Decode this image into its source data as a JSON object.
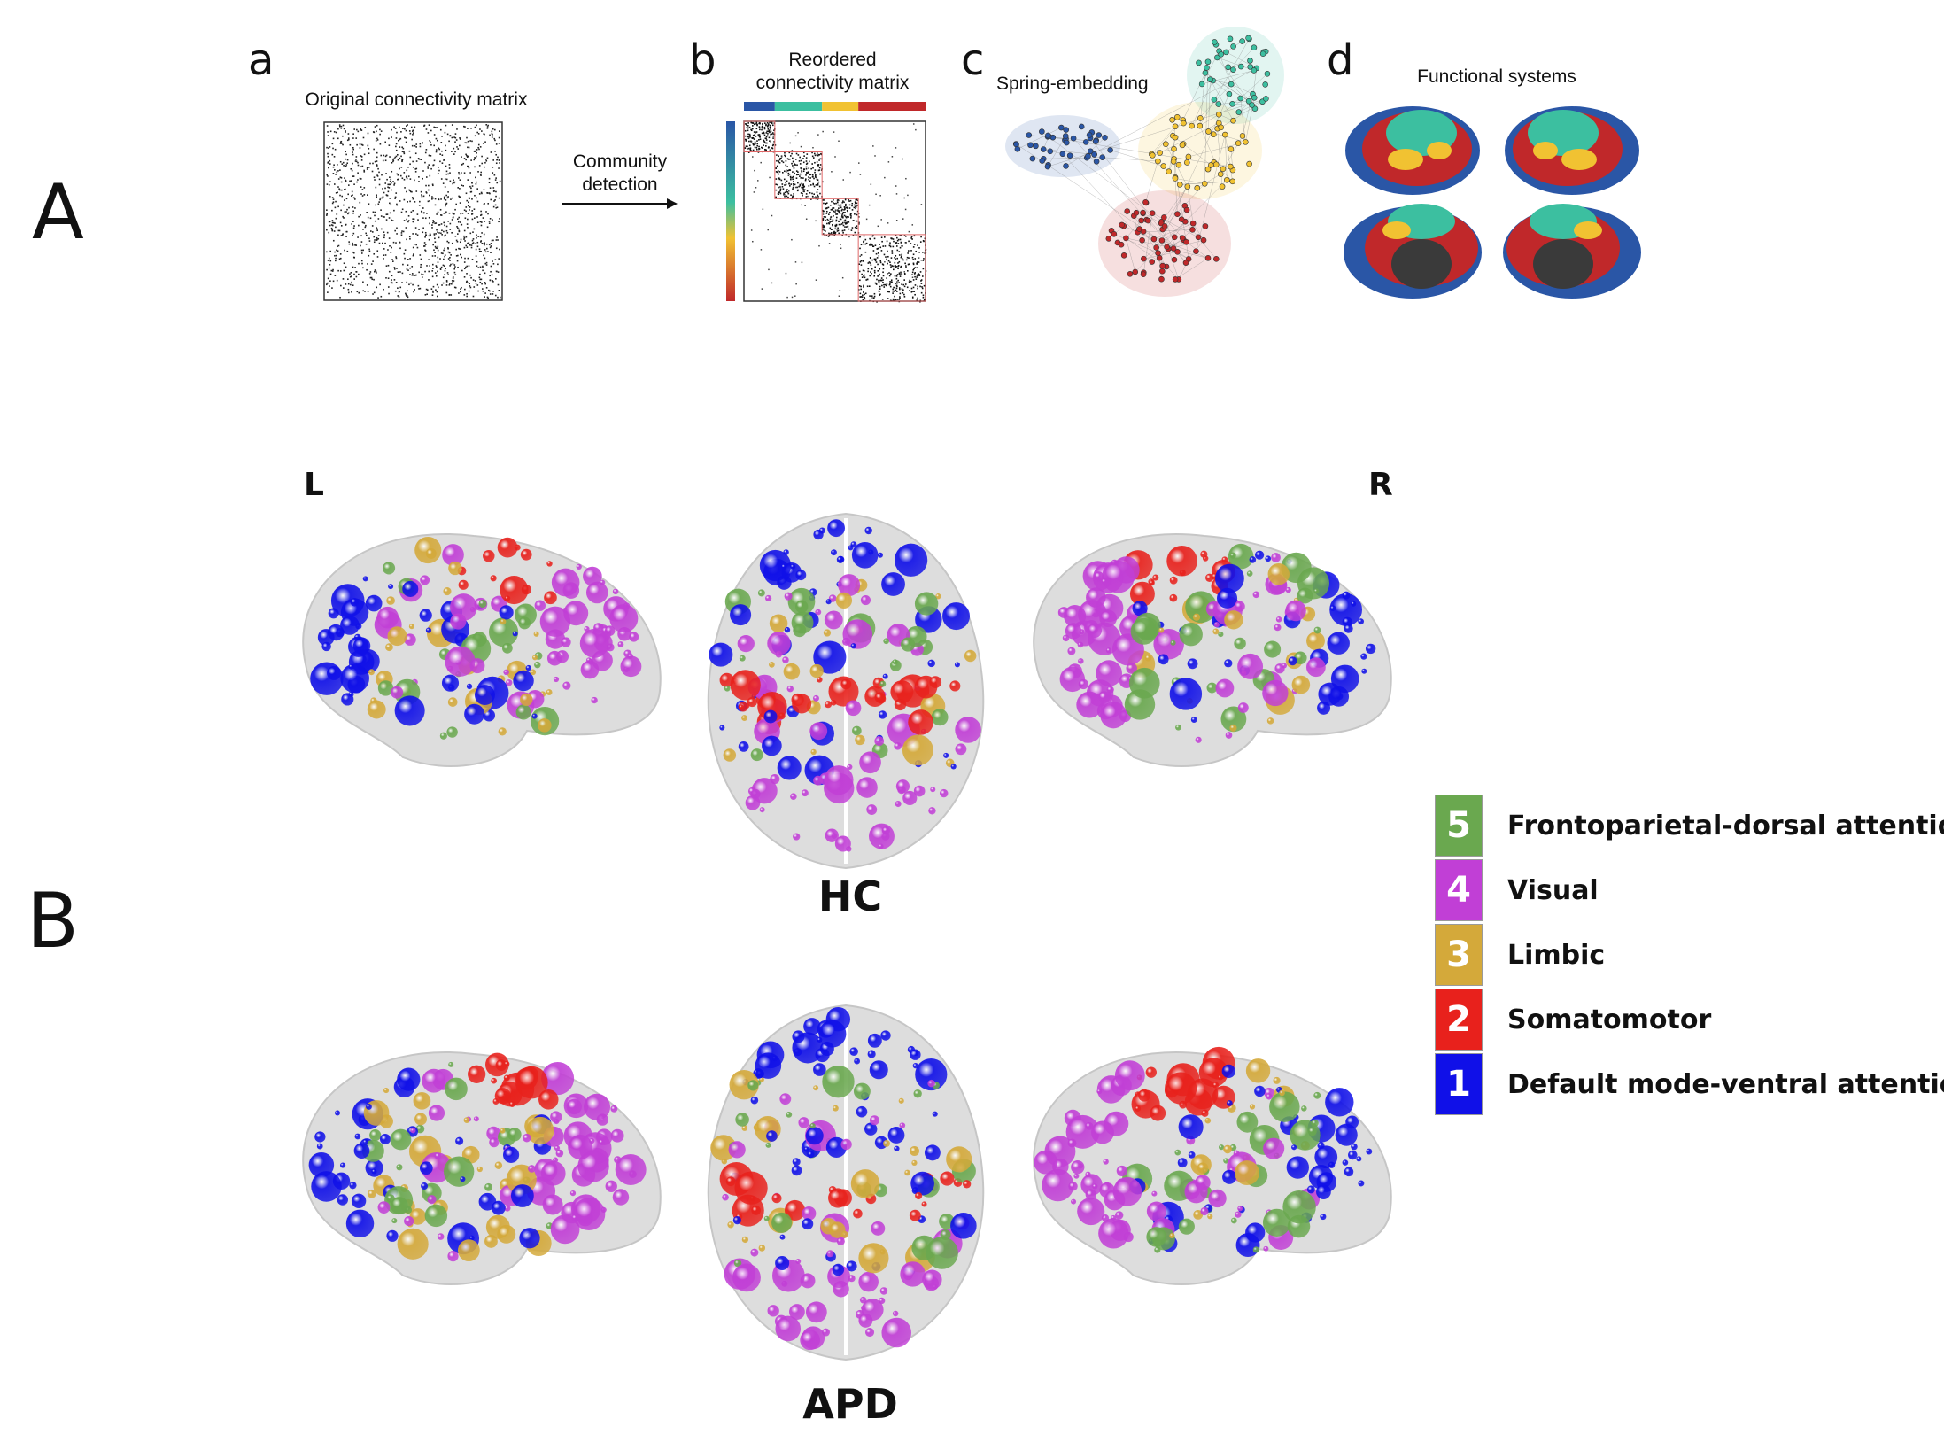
{
  "panel_A": {
    "label": "A",
    "sub_a": {
      "letter": "a",
      "title": "Original connectivity matrix"
    },
    "arrow": {
      "line1": "Community",
      "line2": "detection"
    },
    "sub_b": {
      "letter": "b",
      "title_line1": "Reordered",
      "title_line2": "connectivity matrix"
    },
    "sub_c": {
      "letter": "c",
      "title": "Spring-embedding"
    },
    "sub_d": {
      "letter": "d",
      "title": "Functional systems"
    }
  },
  "panel_B": {
    "label": "B",
    "left_label": "L",
    "right_label": "R",
    "group_top": "HC",
    "group_bottom": "APD"
  },
  "legend": [
    {
      "number": "5",
      "label": "Frontoparietal-dorsal attention",
      "color": "#6aa84f"
    },
    {
      "number": "4",
      "label": "Visual",
      "color": "#c13fd6"
    },
    {
      "number": "3",
      "label": "Limbic",
      "color": "#d4a93a"
    },
    {
      "number": "2",
      "label": "Somatomotor",
      "color": "#e8211c"
    },
    {
      "number": "1",
      "label": "Default mode-ventral attention",
      "color": "#1010e8"
    }
  ],
  "community_colors": {
    "blue": "#2a56a6",
    "teal": "#3cbfa0",
    "yellow": "#f1c232",
    "red": "#c0282a"
  }
}
